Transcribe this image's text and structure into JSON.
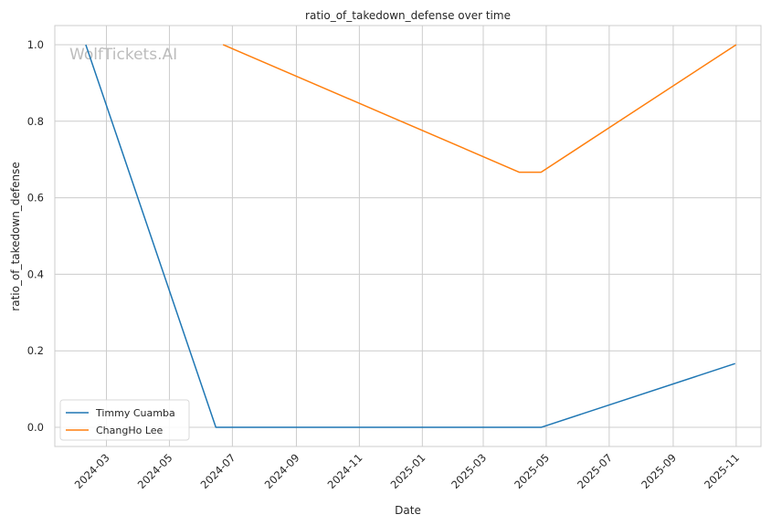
{
  "chart_data": {
    "type": "line",
    "title": "ratio_of_takedown_defense over time",
    "xlabel": "Date",
    "ylabel": "ratio_of_takedown_defense",
    "watermark": "WolfTickets.AI",
    "x_range": [
      "2024-01-11",
      "2025-11-25"
    ],
    "ylim": [
      -0.05,
      1.05
    ],
    "x_ticks": [
      "2024-03-01",
      "2024-05-01",
      "2024-07-01",
      "2024-09-01",
      "2024-11-01",
      "2025-01-01",
      "2025-03-01",
      "2025-05-01",
      "2025-07-01",
      "2025-09-01",
      "2025-11-01"
    ],
    "x_tick_labels": [
      "2024-03",
      "2024-05",
      "2024-07",
      "2024-09",
      "2024-11",
      "2025-01",
      "2025-03",
      "2025-05",
      "2025-07",
      "2025-09",
      "2025-11"
    ],
    "y_ticks": [
      0.0,
      0.2,
      0.4,
      0.6,
      0.8,
      1.0
    ],
    "y_tick_labels": [
      "0.0",
      "0.2",
      "0.4",
      "0.6",
      "0.8",
      "1.0"
    ],
    "grid": true,
    "legend_position": "lower-left",
    "series": [
      {
        "name": "Timmy Cuamba",
        "color": "#1f77b4",
        "points": [
          {
            "x": "2024-02-10",
            "y": 1.0
          },
          {
            "x": "2024-06-15",
            "y": 0.0
          },
          {
            "x": "2025-04-26",
            "y": 0.0
          },
          {
            "x": "2025-10-31",
            "y": 0.1667
          }
        ]
      },
      {
        "name": "ChangHo Lee",
        "color": "#ff7f0e",
        "points": [
          {
            "x": "2024-06-22",
            "y": 1.0
          },
          {
            "x": "2025-04-05",
            "y": 0.6667
          },
          {
            "x": "2025-04-26",
            "y": 0.6667
          },
          {
            "x": "2025-11-01",
            "y": 1.0
          }
        ]
      }
    ]
  }
}
